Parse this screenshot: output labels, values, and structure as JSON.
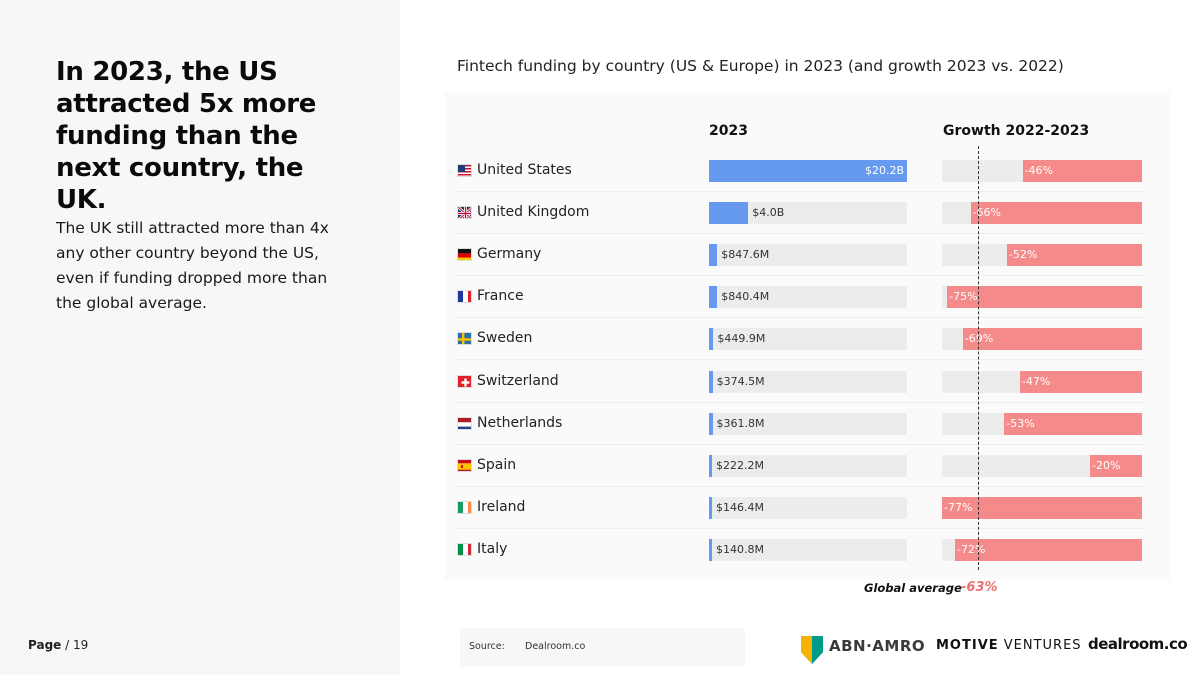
{
  "headline": "In 2023, the US attracted 5x more funding than the next country, the UK.",
  "subtext": "The UK still attracted more than 4x any other country beyond the US, even if funding dropped more than the global average.",
  "page": {
    "label": "Page",
    "rest": " / 19"
  },
  "footer": {
    "source_label": "Source:",
    "source_value": "Dealroom.co",
    "logos": {
      "abn_amro": "ABN·AMRO",
      "motive_bold": "MOTIVE",
      "motive_rest": " VENTURES",
      "dealroom": "dealroom.co"
    }
  },
  "colors": {
    "funding_bar": "#6699f0",
    "growth_bar": "#f58a8a",
    "track": "#ececec",
    "global_avg": "#f07070"
  },
  "chart_data": {
    "type": "bar",
    "title": "Fintech funding by country (US & Europe) in 2023 (and growth 2023 vs. 2022)",
    "columns": [
      "2023",
      "Growth 2022-2023"
    ],
    "categories": [
      "United States",
      "United Kingdom",
      "Germany",
      "France",
      "Sweden",
      "Switzerland",
      "Netherlands",
      "Spain",
      "Ireland",
      "Italy"
    ],
    "flags": [
      "us-flag-icon",
      "uk-flag-icon",
      "germany-flag-icon",
      "france-flag-icon",
      "sweden-flag-icon",
      "switzerland-flag-icon",
      "netherlands-flag-icon",
      "spain-flag-icon",
      "ireland-flag-icon",
      "italy-flag-icon"
    ],
    "series": [
      {
        "name": "2023",
        "values": [
          20.2,
          4.0,
          0.8476,
          0.8404,
          0.4499,
          0.3745,
          0.3618,
          0.2222,
          0.1464,
          0.1408
        ],
        "labels": [
          "$20.2B",
          "$4.0B",
          "$847.6M",
          "$840.4M",
          "$449.9M",
          "$374.5M",
          "$361.8M",
          "$222.2M",
          "$146.4M",
          "$140.8M"
        ]
      },
      {
        "name": "Growth 2022-2023",
        "values": [
          -46,
          -66,
          -52,
          -75,
          -69,
          -47,
          -53,
          -20,
          -77,
          -72
        ],
        "labels": [
          "-46%",
          "-66%",
          "-52%",
          "-75%",
          "-69%",
          "-47%",
          "-53%",
          "-20%",
          "-77%",
          "-72%"
        ]
      }
    ],
    "funding_max": 20.2,
    "growth_range": [
      -77,
      0
    ],
    "global_average": {
      "label": "Global average",
      "value": -63,
      "text": "-63%"
    }
  }
}
